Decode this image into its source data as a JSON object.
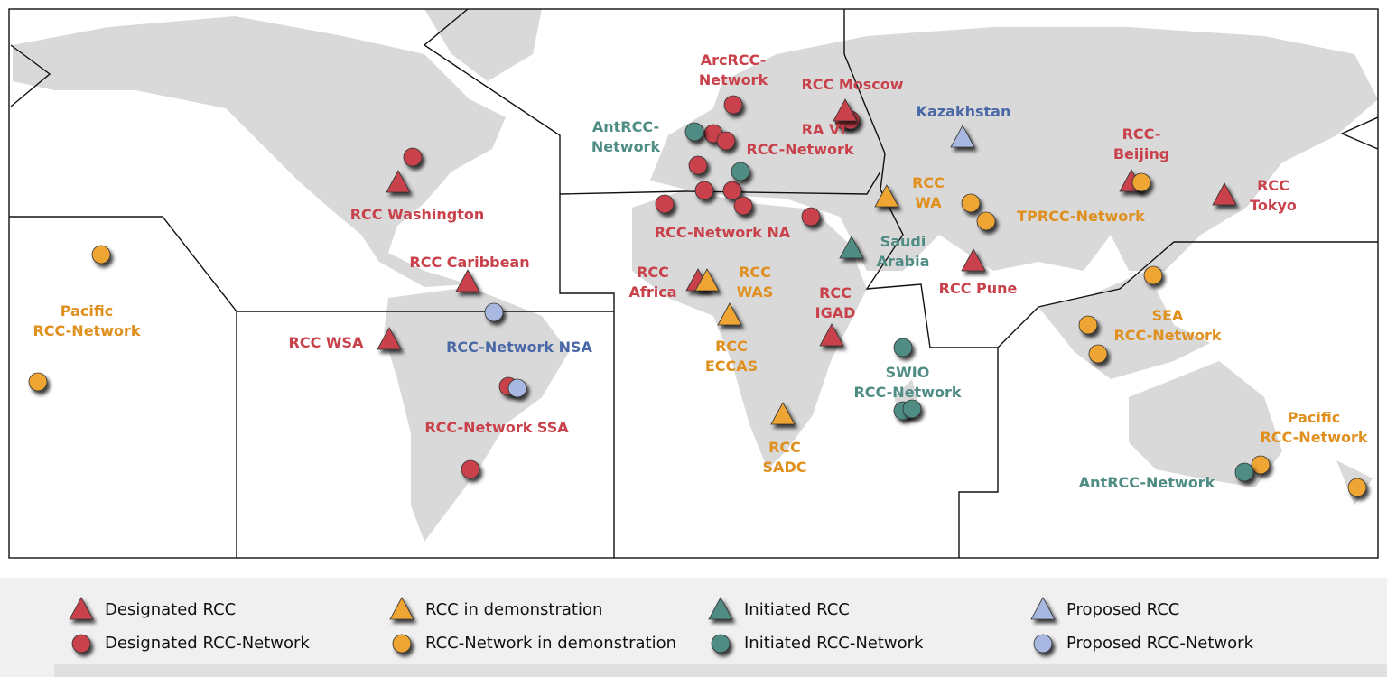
{
  "labels": [
    [
      "ArcRCC-",
      "Network"
    ],
    [
      "RCC Moscow"
    ],
    [
      "AntRCC-",
      "Network"
    ],
    [
      "RA VI",
      "RCC-Network"
    ],
    [
      "Kazakhstan"
    ],
    [
      "RCC-",
      "Beijing"
    ],
    [
      "RCC Washington"
    ],
    [
      "RCC",
      "WA"
    ],
    [
      "TPRCC-Network"
    ],
    [
      "RCC",
      "Tokyo"
    ],
    [
      "RCC-Network NA"
    ],
    [
      "Saudi",
      "Arabia"
    ],
    [
      "RCC Caribbean"
    ],
    [
      "RCC",
      "Africa"
    ],
    [
      "RCC",
      "WAS"
    ],
    [
      "Pacific",
      "RCC-Network"
    ],
    [
      "RCC",
      "IGAD"
    ],
    [
      "RCC Pune"
    ],
    [
      "SEA",
      "RCC-Network"
    ],
    [
      "RCC WSA"
    ],
    [
      "RCC-Network NSA"
    ],
    [
      "RCC",
      "ECCAS"
    ],
    [
      "SWIO",
      "RCC-Network"
    ],
    [
      "RCC-Network SSA"
    ],
    [
      "Pacific",
      "RCC-Network"
    ],
    [
      "RCC",
      "SADC"
    ],
    [
      "AntRCC-Network"
    ]
  ],
  "legend": [
    "Designated RCC",
    "Designated RCC-Network",
    "RCC in demonstration",
    "RCC-Network in demonstration",
    "Initiated RCC",
    "Initiated RCC-Network",
    "Proposed RCC",
    "Proposed RCC-Network"
  ]
}
